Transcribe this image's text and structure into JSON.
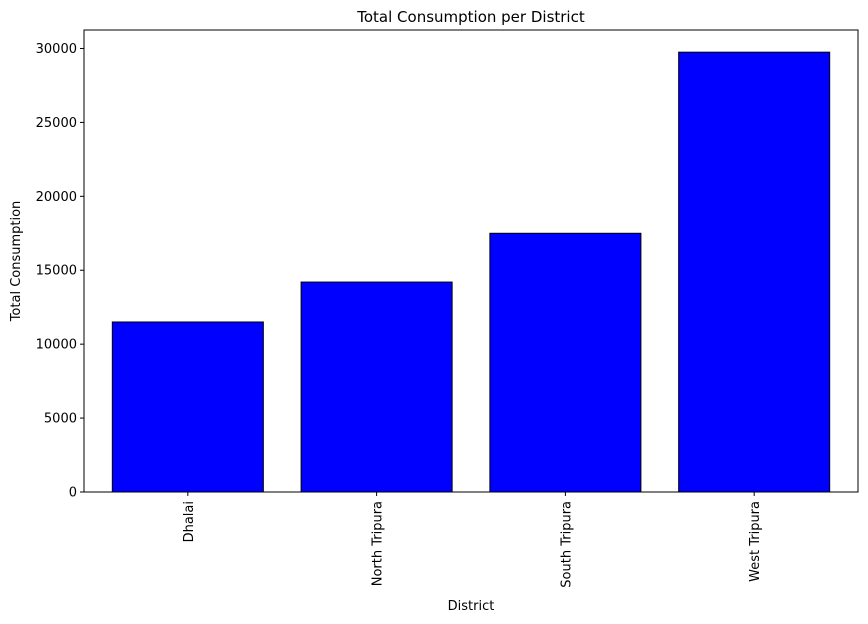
{
  "chart_data": {
    "type": "bar",
    "title": "Total Consumption per District",
    "xlabel": "District",
    "ylabel": "Total Consumption",
    "categories": [
      "Dhalai",
      "North Tripura",
      "South Tripura",
      "West Tripura"
    ],
    "values": [
      11500,
      14200,
      17500,
      29750
    ],
    "ylim": [
      0,
      31250
    ],
    "yticks": [
      0,
      5000,
      10000,
      15000,
      20000,
      25000,
      30000
    ],
    "bar_color": "#0000ff",
    "bar_edge_color": "#000000",
    "grid": false,
    "legend": "none"
  }
}
